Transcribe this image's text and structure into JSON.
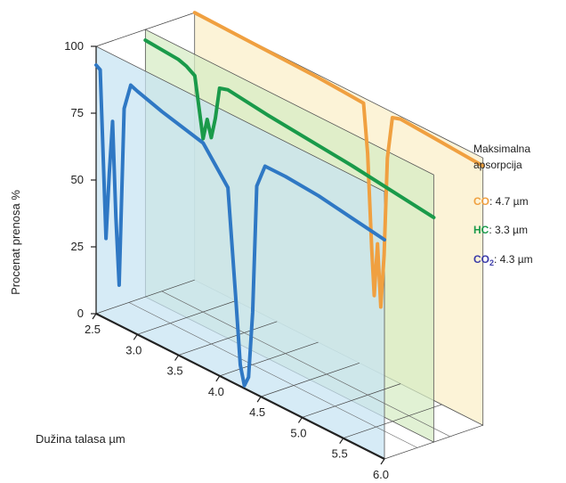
{
  "chart_data": {
    "type": "line",
    "ylabel": "Procenat prenosa %",
    "xlabel": "Dužina talasa µm",
    "ylim": [
      0,
      100
    ],
    "xlim": [
      2.5,
      6.0
    ],
    "y_ticks": [
      "0",
      "25",
      "50",
      "75",
      "100"
    ],
    "x_ticks": [
      "2.5",
      "3.0",
      "3.5",
      "4.0",
      "4.5",
      "5.0",
      "5.5",
      "6.0"
    ],
    "legend": {
      "title_line1": "Maksimalna",
      "title_line2": "apsorpcija",
      "entries": [
        {
          "gas": "CO",
          "sub": "",
          "value": ": 4.7 µm",
          "color": "#f0a040"
        },
        {
          "gas": "HC",
          "sub": "",
          "value": ": 3.3 µm",
          "color": "#1a9a4a"
        },
        {
          "gas": "CO",
          "sub": "2",
          "value": ": 4.3 µm",
          "color": "#3a3aa8"
        }
      ]
    },
    "series": [
      {
        "name": "CO",
        "color": "#f0a040",
        "panel_fill": "#fbeec8",
        "x": [
          2.5,
          4.0,
          4.55,
          4.6,
          4.65,
          4.68,
          4.72,
          4.76,
          4.8,
          4.84,
          4.9,
          5.0,
          5.5,
          6.0
        ],
        "y": [
          100,
          99,
          98,
          80,
          45,
          28,
          48,
          25,
          45,
          82,
          98,
          99,
          98,
          97
        ]
      },
      {
        "name": "HC",
        "color": "#1a9a4a",
        "panel_fill": "#d6ecc4",
        "x": [
          2.5,
          2.9,
          3.0,
          3.1,
          3.2,
          3.25,
          3.3,
          3.35,
          3.4,
          3.5,
          4.0,
          5.0,
          6.0
        ],
        "y": [
          96,
          95,
          94,
          92,
          70,
          78,
          72,
          80,
          92,
          93,
          91,
          88,
          84
        ]
      },
      {
        "name": "CO2",
        "color": "#2f78c4",
        "panel_fill": "#c6e3f2",
        "x": [
          2.5,
          2.55,
          2.62,
          2.66,
          2.7,
          2.74,
          2.78,
          2.84,
          2.92,
          3.0,
          3.3,
          3.8,
          4.1,
          4.2,
          4.25,
          4.3,
          4.35,
          4.4,
          4.45,
          4.55,
          4.8,
          5.2,
          5.6,
          6.0
        ],
        "y": [
          93,
          92,
          30,
          55,
          75,
          40,
          15,
          82,
          92,
          91,
          88,
          84,
          72,
          30,
          8,
          1,
          5,
          30,
          78,
          87,
          87,
          86,
          84,
          82
        ]
      }
    ]
  }
}
